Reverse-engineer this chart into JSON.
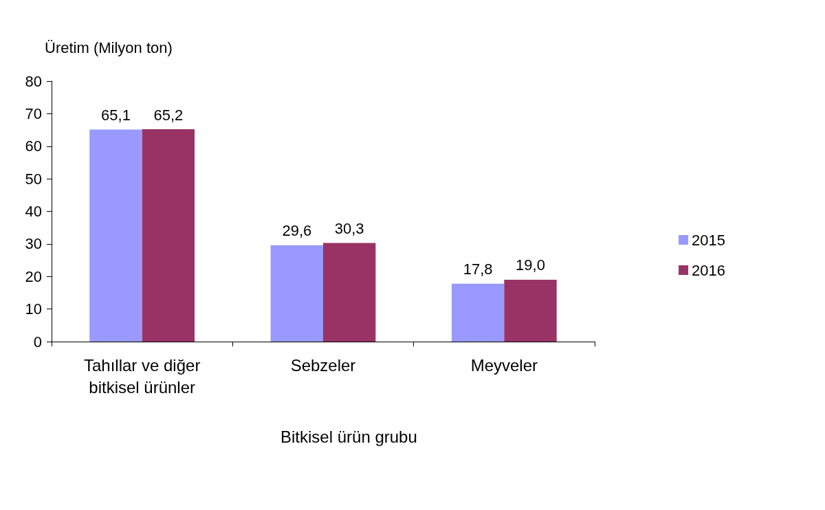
{
  "chart_data": {
    "type": "bar",
    "ylabel": "Üretim (Milyon ton)",
    "xlabel": "Bitkisel ürün grubu",
    "categories": [
      "Tahıllar ve diğer\nbitkisel ürünler",
      "Sebzeler",
      "Meyveler"
    ],
    "series": [
      {
        "name": "2015",
        "color": "#9999ff",
        "values": [
          65.1,
          29.6,
          17.8
        ],
        "value_labels": [
          "65,1",
          "29,6",
          "17,8"
        ]
      },
      {
        "name": "2016",
        "color": "#993366",
        "values": [
          65.2,
          30.3,
          19.0
        ],
        "value_labels": [
          "65,2",
          "30,3",
          "19,0"
        ]
      }
    ],
    "ylim": [
      0,
      80
    ],
    "yticks": [
      0,
      10,
      20,
      30,
      40,
      50,
      60,
      70,
      80
    ],
    "grid": false,
    "legend": "right"
  }
}
